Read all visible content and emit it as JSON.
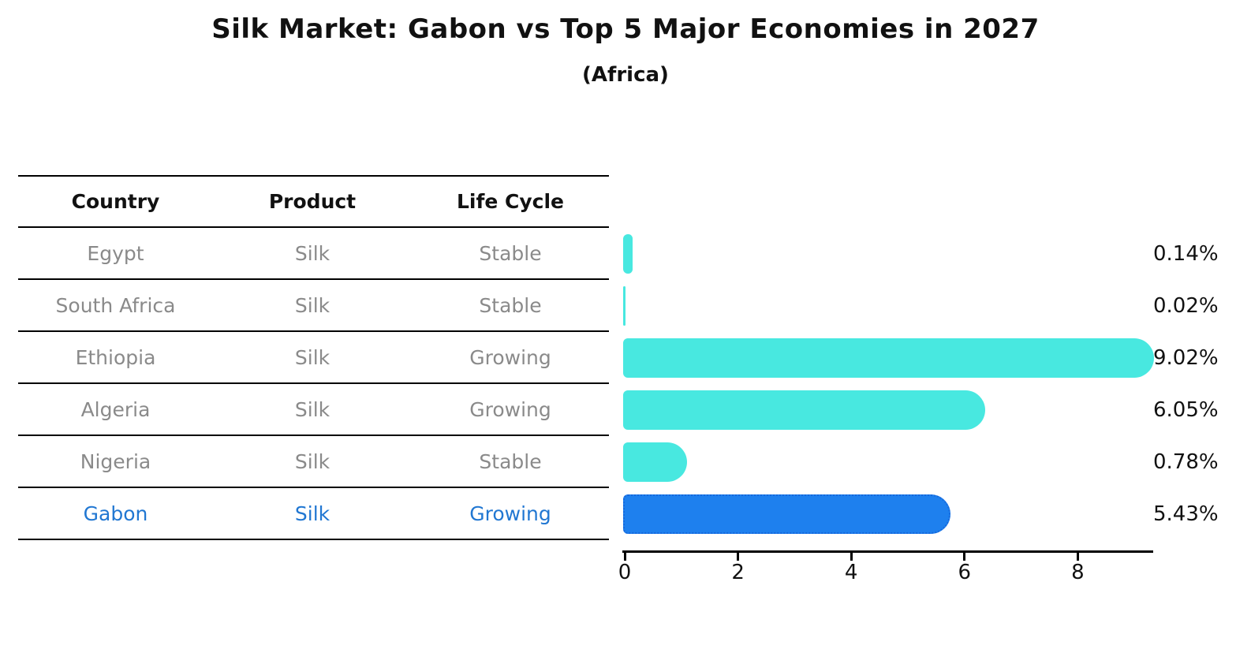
{
  "title": "Silk Market: Gabon vs Top 5 Major Economies in 2027",
  "subtitle": "(Africa)",
  "table": {
    "headers": [
      "Country",
      "Product",
      "Life Cycle"
    ],
    "rows": [
      {
        "country": "Egypt",
        "product": "Silk",
        "life_cycle": "Stable",
        "highlight": false
      },
      {
        "country": "South Africa",
        "product": "Silk",
        "life_cycle": "Stable",
        "highlight": false
      },
      {
        "country": "Ethiopia",
        "product": "Silk",
        "life_cycle": "Growing",
        "highlight": false
      },
      {
        "country": "Algeria",
        "product": "Silk",
        "life_cycle": "Growing",
        "highlight": false
      },
      {
        "country": "Nigeria",
        "product": "Silk",
        "life_cycle": "Stable",
        "highlight": false
      },
      {
        "country": "Gabon",
        "product": "Silk",
        "life_cycle": "Growing",
        "highlight": true
      }
    ]
  },
  "chart_data": {
    "type": "bar",
    "orientation": "horizontal",
    "title": "Silk Market: Gabon vs Top 5 Major Economies in 2027",
    "subtitle": "(Africa)",
    "categories": [
      "Egypt",
      "South Africa",
      "Ethiopia",
      "Algeria",
      "Nigeria",
      "Gabon"
    ],
    "values": [
      0.14,
      0.02,
      9.02,
      6.05,
      0.78,
      5.43
    ],
    "value_labels": [
      "0.14%",
      "0.02%",
      "9.02%",
      "6.05%",
      "0.78%",
      "5.43%"
    ],
    "xlabel": "",
    "ylabel": "",
    "xlim": [
      0,
      9.4
    ],
    "xticks": [
      0,
      2,
      4,
      6,
      8
    ],
    "grid": false,
    "legend": "none",
    "bar_color": "#48e8e0",
    "highlight_index": 5,
    "highlight_color": "#1e80ee",
    "highlight_border_color": "#1668dc",
    "highlight_border_style": "dotted",
    "highlight_text_color": "#2177d2",
    "row_text_color": "#8a8a8a"
  }
}
